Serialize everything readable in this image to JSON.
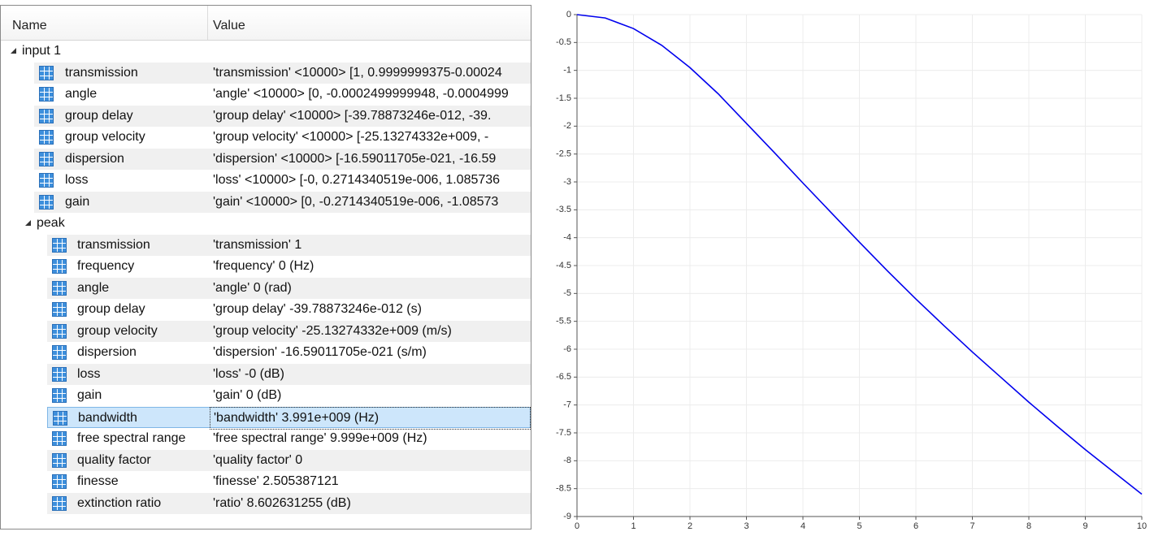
{
  "table": {
    "columns": [
      "Name",
      "Value"
    ],
    "tree": [
      {
        "name": "input 1",
        "rows": [
          {
            "name": "transmission",
            "value": "'transmission' <10000> [1, 0.9999999375-0.00024"
          },
          {
            "name": "angle",
            "value": "'angle' <10000> [0, -0.0002499999948, -0.0004999"
          },
          {
            "name": "group delay",
            "value": "'group delay' <10000> [-39.78873246e-012, -39."
          },
          {
            "name": "group velocity",
            "value": "'group velocity' <10000> [-25.13274332e+009, -"
          },
          {
            "name": "dispersion",
            "value": "'dispersion' <10000> [-16.59011705e-021, -16.59"
          },
          {
            "name": "loss",
            "value": "'loss' <10000> [-0, 0.2714340519e-006, 1.085736"
          },
          {
            "name": "gain",
            "value": "'gain' <10000> [0, -0.2714340519e-006, -1.08573"
          }
        ],
        "children": [
          {
            "name": "peak",
            "rows": [
              {
                "name": "transmission",
                "value": "'transmission' 1"
              },
              {
                "name": "frequency",
                "value": "'frequency' 0 (Hz)"
              },
              {
                "name": "angle",
                "value": "'angle' 0 (rad)"
              },
              {
                "name": "group delay",
                "value": "'group delay' -39.78873246e-012 (s)"
              },
              {
                "name": "group velocity",
                "value": "'group velocity' -25.13274332e+009 (m/s)"
              },
              {
                "name": "dispersion",
                "value": "'dispersion' -16.59011705e-021 (s/m)"
              },
              {
                "name": "loss",
                "value": "'loss' -0 (dB)"
              },
              {
                "name": "gain",
                "value": "'gain' 0 (dB)"
              },
              {
                "name": "bandwidth",
                "value": "'bandwidth' 3.991e+009 (Hz)",
                "selected": true
              },
              {
                "name": "free spectral range",
                "value": "'free spectral range' 9.999e+009 (Hz)"
              },
              {
                "name": "quality factor",
                "value": "'quality factor' 0"
              },
              {
                "name": "finesse",
                "value": "'finesse' 2.505387121"
              },
              {
                "name": "extinction ratio",
                "value": "'ratio' 8.602631255 (dB)"
              }
            ]
          }
        ]
      }
    ]
  },
  "chart_data": {
    "type": "line",
    "color": "#0000ee",
    "grid": true,
    "x": [
      0,
      0.5,
      1,
      1.5,
      2,
      2.5,
      3,
      3.5,
      4,
      4.5,
      5,
      5.5,
      6,
      6.5,
      7,
      7.5,
      8,
      8.5,
      9,
      9.5,
      10
    ],
    "values": [
      0,
      -0.06,
      -0.25,
      -0.55,
      -0.95,
      -1.42,
      -1.95,
      -2.48,
      -3.02,
      -3.55,
      -4.08,
      -4.6,
      -5.1,
      -5.58,
      -6.05,
      -6.5,
      -6.95,
      -7.38,
      -7.8,
      -8.2,
      -8.6
    ],
    "xlim": [
      0,
      10
    ],
    "xticks": [
      0,
      1,
      2,
      3,
      4,
      5,
      6,
      7,
      8,
      9,
      10
    ],
    "ylim": [
      -9,
      0
    ],
    "yticks": [
      0,
      -0.5,
      -1,
      -1.5,
      -2,
      -2.5,
      -3,
      -3.5,
      -4,
      -4.5,
      -5,
      -5.5,
      -6,
      -6.5,
      -7,
      -7.5,
      -8,
      -8.5,
      -9
    ]
  }
}
